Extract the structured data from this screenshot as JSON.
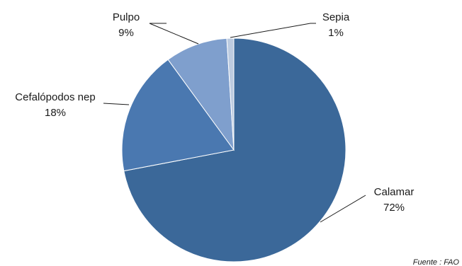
{
  "chart_data": {
    "type": "pie",
    "labels": [
      "Calamar",
      "Cefalópodos nep",
      "Pulpo",
      "Sepia"
    ],
    "values": [
      72,
      18,
      9,
      1
    ],
    "value_labels": [
      "72%",
      "18%",
      "9%",
      "1%"
    ],
    "colors": [
      "#3b6899",
      "#4a78b0",
      "#7f9fcd",
      "#bccbe0"
    ],
    "start_angle_deg": 0,
    "direction": "clockwise"
  },
  "source_note": "Fuente : FAO"
}
